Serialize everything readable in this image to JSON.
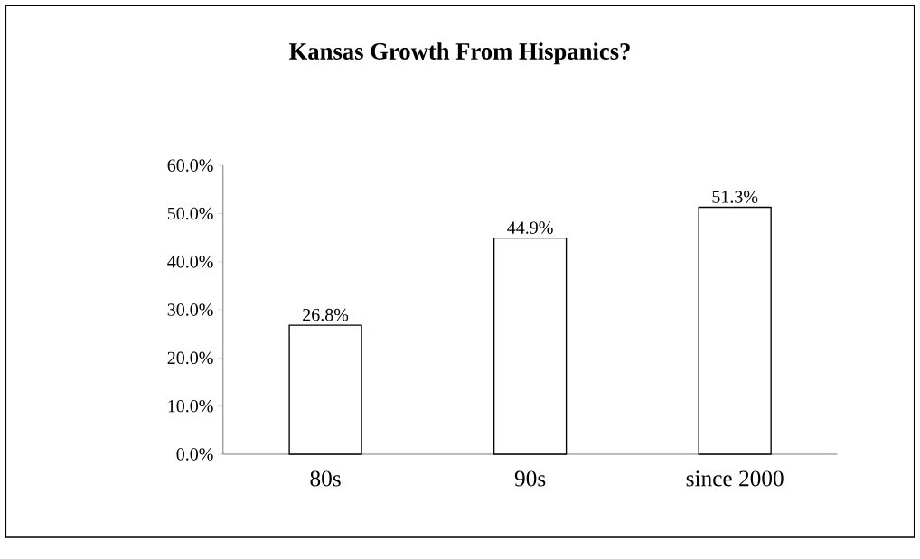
{
  "chart_data": {
    "type": "bar",
    "title": "Kansas Growth From Hispanics?",
    "categories": [
      "80s",
      "90s",
      "since 2000"
    ],
    "values": [
      26.8,
      44.9,
      51.3
    ],
    "value_labels": [
      "26.8%",
      "44.9%",
      "51.3%"
    ],
    "color": "#ffffff",
    "ylim": [
      0,
      60
    ],
    "yticks": [
      {
        "value": 0,
        "label": "0.0%"
      },
      {
        "value": 10,
        "label": "10.0%"
      },
      {
        "value": 20,
        "label": "20.0%"
      },
      {
        "value": 30,
        "label": "30.0%"
      },
      {
        "value": 40,
        "label": "40.0%"
      },
      {
        "value": 50,
        "label": "50.0%"
      },
      {
        "value": 60,
        "label": "60.0%"
      }
    ]
  }
}
